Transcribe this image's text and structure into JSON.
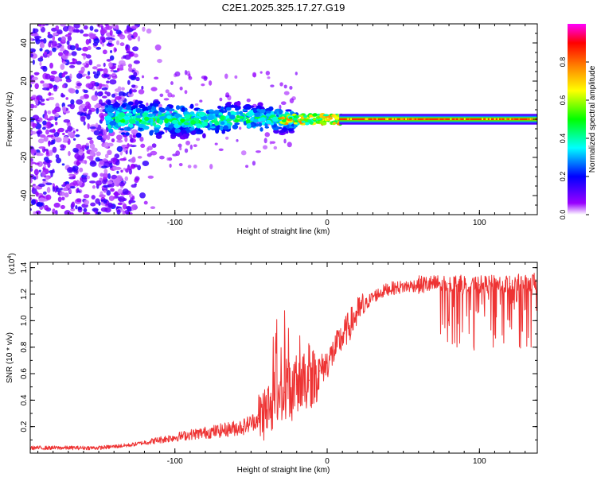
{
  "title": "C2E1.2025.325.17.27.G19",
  "chart_data": [
    {
      "type": "heatmap",
      "title": "C2E1.2025.325.17.27.G19",
      "xlabel": "Height of straight line (km)",
      "ylabel": "Frequency (Hz)",
      "xlim": [
        -195,
        138
      ],
      "ylim": [
        -50,
        50
      ],
      "xticks": [
        -100,
        0,
        100
      ],
      "yticks": [
        -40,
        -20,
        0,
        20,
        40
      ],
      "colorbar": {
        "label": "Normalized spectral amplitude",
        "range": [
          0,
          1
        ],
        "ticks": [
          "0.0",
          "0.2",
          "0.4",
          "0.6",
          "0.8"
        ],
        "colors": [
          "#ffffff",
          "#8000ff",
          "#0000ff",
          "#00ffff",
          "#00ff00",
          "#ffff00",
          "#ff8000",
          "#ff0000",
          "#ff00ff"
        ]
      },
      "regions": [
        {
          "name": "scattered noise",
          "x_range": [
            -195,
            -125
          ],
          "freq_range": [
            -50,
            50
          ],
          "amplitude": 0.1
        },
        {
          "name": "broad central band",
          "x_range": [
            -140,
            -30
          ],
          "freq_range": [
            -8,
            8
          ],
          "amplitude": 0.4
        },
        {
          "name": "narrowing band",
          "x_range": [
            -30,
            10
          ],
          "freq_range": [
            -4,
            4
          ],
          "amplitude": 0.8
        },
        {
          "name": "stable carrier line",
          "x_range": [
            10,
            138
          ],
          "freq_range": [
            -1,
            1
          ],
          "amplitude": 0.9
        }
      ]
    },
    {
      "type": "line",
      "xlabel": "Height of straight line (km)",
      "ylabel": "SNR (10 * v/v)",
      "y_multiplier": "(x10",
      "y_multiplier_exp": "4",
      "xlim": [
        -195,
        138
      ],
      "ylim": [
        0,
        1.44
      ],
      "xticks": [
        -100,
        0,
        100
      ],
      "yticks": [
        "0.2",
        "0.4",
        "0.6",
        "0.8",
        "1.0",
        "1.2",
        "1.4"
      ],
      "color": "#ee3333",
      "series": [
        {
          "name": "SNR",
          "x": [
            -195,
            -170,
            -150,
            -130,
            -110,
            -90,
            -70,
            -55,
            -45,
            -35,
            -28,
            -20,
            -12,
            -5,
            0,
            5,
            10,
            20,
            30,
            40,
            60,
            80,
            100,
            120,
            138
          ],
          "values": [
            0.04,
            0.04,
            0.04,
            0.06,
            0.1,
            0.14,
            0.17,
            0.2,
            0.26,
            0.4,
            0.46,
            0.52,
            0.55,
            0.62,
            0.68,
            0.78,
            0.88,
            1.06,
            1.18,
            1.24,
            1.27,
            1.28,
            1.27,
            1.28,
            1.29
          ]
        }
      ]
    }
  ]
}
